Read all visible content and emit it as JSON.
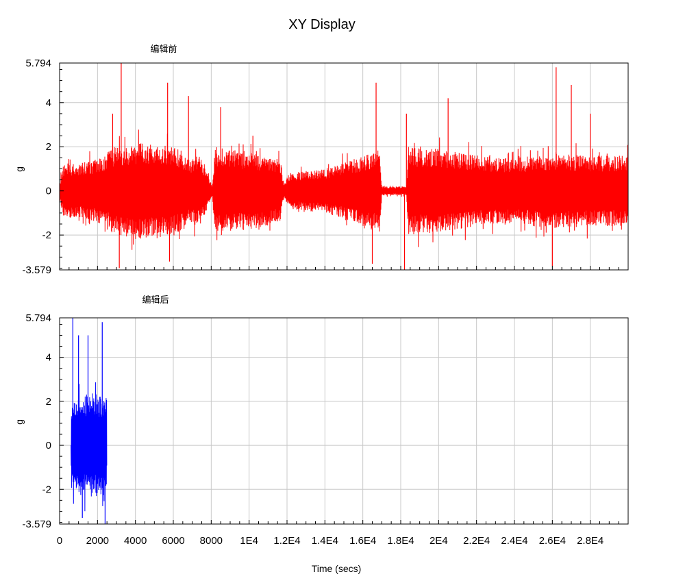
{
  "title": "XY Display",
  "xlabel": "Time (secs)",
  "chart_data": [
    {
      "type": "line",
      "title": "编辑前",
      "ylabel": "g",
      "ylim": [
        -3.579,
        5.794
      ],
      "xlim": [
        0,
        30000
      ],
      "yticks": [
        "5.794",
        "4",
        "2",
        "0",
        "-2",
        "-3.579"
      ],
      "grid": true,
      "series": [
        {
          "color": "#ff0000",
          "envelope": [
            {
              "x": 0,
              "amp": 0.3
            },
            {
              "x": 200,
              "amp": 1.2
            },
            {
              "x": 500,
              "amp": 1.3
            },
            {
              "x": 900,
              "amp": 1.2
            },
            {
              "x": 1300,
              "amp": 1.3
            },
            {
              "x": 1800,
              "amp": 1.4
            },
            {
              "x": 2300,
              "amp": 1.5
            },
            {
              "x": 2800,
              "amp": 2.0
            },
            {
              "x": 3400,
              "amp": 2.1
            },
            {
              "x": 4000,
              "amp": 2.2
            },
            {
              "x": 4800,
              "amp": 2.2
            },
            {
              "x": 5500,
              "amp": 2.1
            },
            {
              "x": 6300,
              "amp": 1.9
            },
            {
              "x": 6900,
              "amp": 1.5
            },
            {
              "x": 7400,
              "amp": 1.6
            },
            {
              "x": 7800,
              "amp": 0.8
            },
            {
              "x": 8050,
              "amp": 0.2
            },
            {
              "x": 8200,
              "amp": 2.0
            },
            {
              "x": 9500,
              "amp": 1.8
            },
            {
              "x": 11000,
              "amp": 1.6
            },
            {
              "x": 11650,
              "amp": 1.4
            },
            {
              "x": 11850,
              "amp": 0.3
            },
            {
              "x": 12100,
              "amp": 0.8
            },
            {
              "x": 13000,
              "amp": 0.9
            },
            {
              "x": 14000,
              "amp": 1.0
            },
            {
              "x": 15000,
              "amp": 1.3
            },
            {
              "x": 16000,
              "amp": 1.6
            },
            {
              "x": 16900,
              "amp": 1.9
            },
            {
              "x": 17000,
              "amp": 0.2
            },
            {
              "x": 18300,
              "amp": 0.2
            },
            {
              "x": 18400,
              "amp": 2.0
            },
            {
              "x": 20000,
              "amp": 1.9
            },
            {
              "x": 22000,
              "amp": 1.6
            },
            {
              "x": 24000,
              "amp": 1.5
            },
            {
              "x": 26000,
              "amp": 1.7
            },
            {
              "x": 28000,
              "amp": 1.6
            },
            {
              "x": 30000,
              "amp": 1.6
            }
          ],
          "peaks": [
            {
              "x": 3250,
              "y": 5.794
            },
            {
              "x": 3150,
              "y": -3.5
            },
            {
              "x": 2800,
              "y": 3.5
            },
            {
              "x": 5700,
              "y": 4.9
            },
            {
              "x": 5800,
              "y": -3.2
            },
            {
              "x": 6800,
              "y": 4.3
            },
            {
              "x": 8500,
              "y": 3.8
            },
            {
              "x": 10200,
              "y": 2.5
            },
            {
              "x": 16700,
              "y": 4.9
            },
            {
              "x": 16500,
              "y": -3.3
            },
            {
              "x": 18200,
              "y": -3.579
            },
            {
              "x": 18300,
              "y": 3.5
            },
            {
              "x": 20500,
              "y": 4.2
            },
            {
              "x": 26200,
              "y": 5.6
            },
            {
              "x": 26000,
              "y": -3.4
            },
            {
              "x": 27000,
              "y": 4.8
            },
            {
              "x": 28000,
              "y": 3.5
            }
          ]
        }
      ]
    },
    {
      "type": "line",
      "title": "编辑后",
      "ylabel": "g",
      "ylim": [
        -3.579,
        5.794
      ],
      "xlim": [
        0,
        30000
      ],
      "yticks": [
        "5.794",
        "4",
        "2",
        "0",
        "-2",
        "-3.579"
      ],
      "xticks": [
        "0",
        "2000",
        "4000",
        "6000",
        "8000",
        "1E4",
        "1.2E4",
        "1.4E4",
        "1.6E4",
        "1.8E4",
        "2E4",
        "2.2E4",
        "2.4E4",
        "2.6E4",
        "2.8E4"
      ],
      "grid": true,
      "series": [
        {
          "color": "#0000ff",
          "envelope": [
            {
              "x": 600,
              "amp": 0
            },
            {
              "x": 620,
              "amp": 2.0
            },
            {
              "x": 900,
              "amp": 2.2
            },
            {
              "x": 1200,
              "amp": 2.3
            },
            {
              "x": 1600,
              "amp": 2.4
            },
            {
              "x": 2000,
              "amp": 2.3
            },
            {
              "x": 2400,
              "amp": 2.4
            },
            {
              "x": 2480,
              "amp": 2.3
            },
            {
              "x": 2500,
              "amp": 0
            }
          ],
          "peaks": [
            {
              "x": 700,
              "y": 5.794
            },
            {
              "x": 2250,
              "y": 5.6
            },
            {
              "x": 1000,
              "y": 5.0
            },
            {
              "x": 1500,
              "y": 5.0
            },
            {
              "x": 2400,
              "y": -3.579
            },
            {
              "x": 1200,
              "y": -3.3
            }
          ]
        }
      ]
    }
  ]
}
